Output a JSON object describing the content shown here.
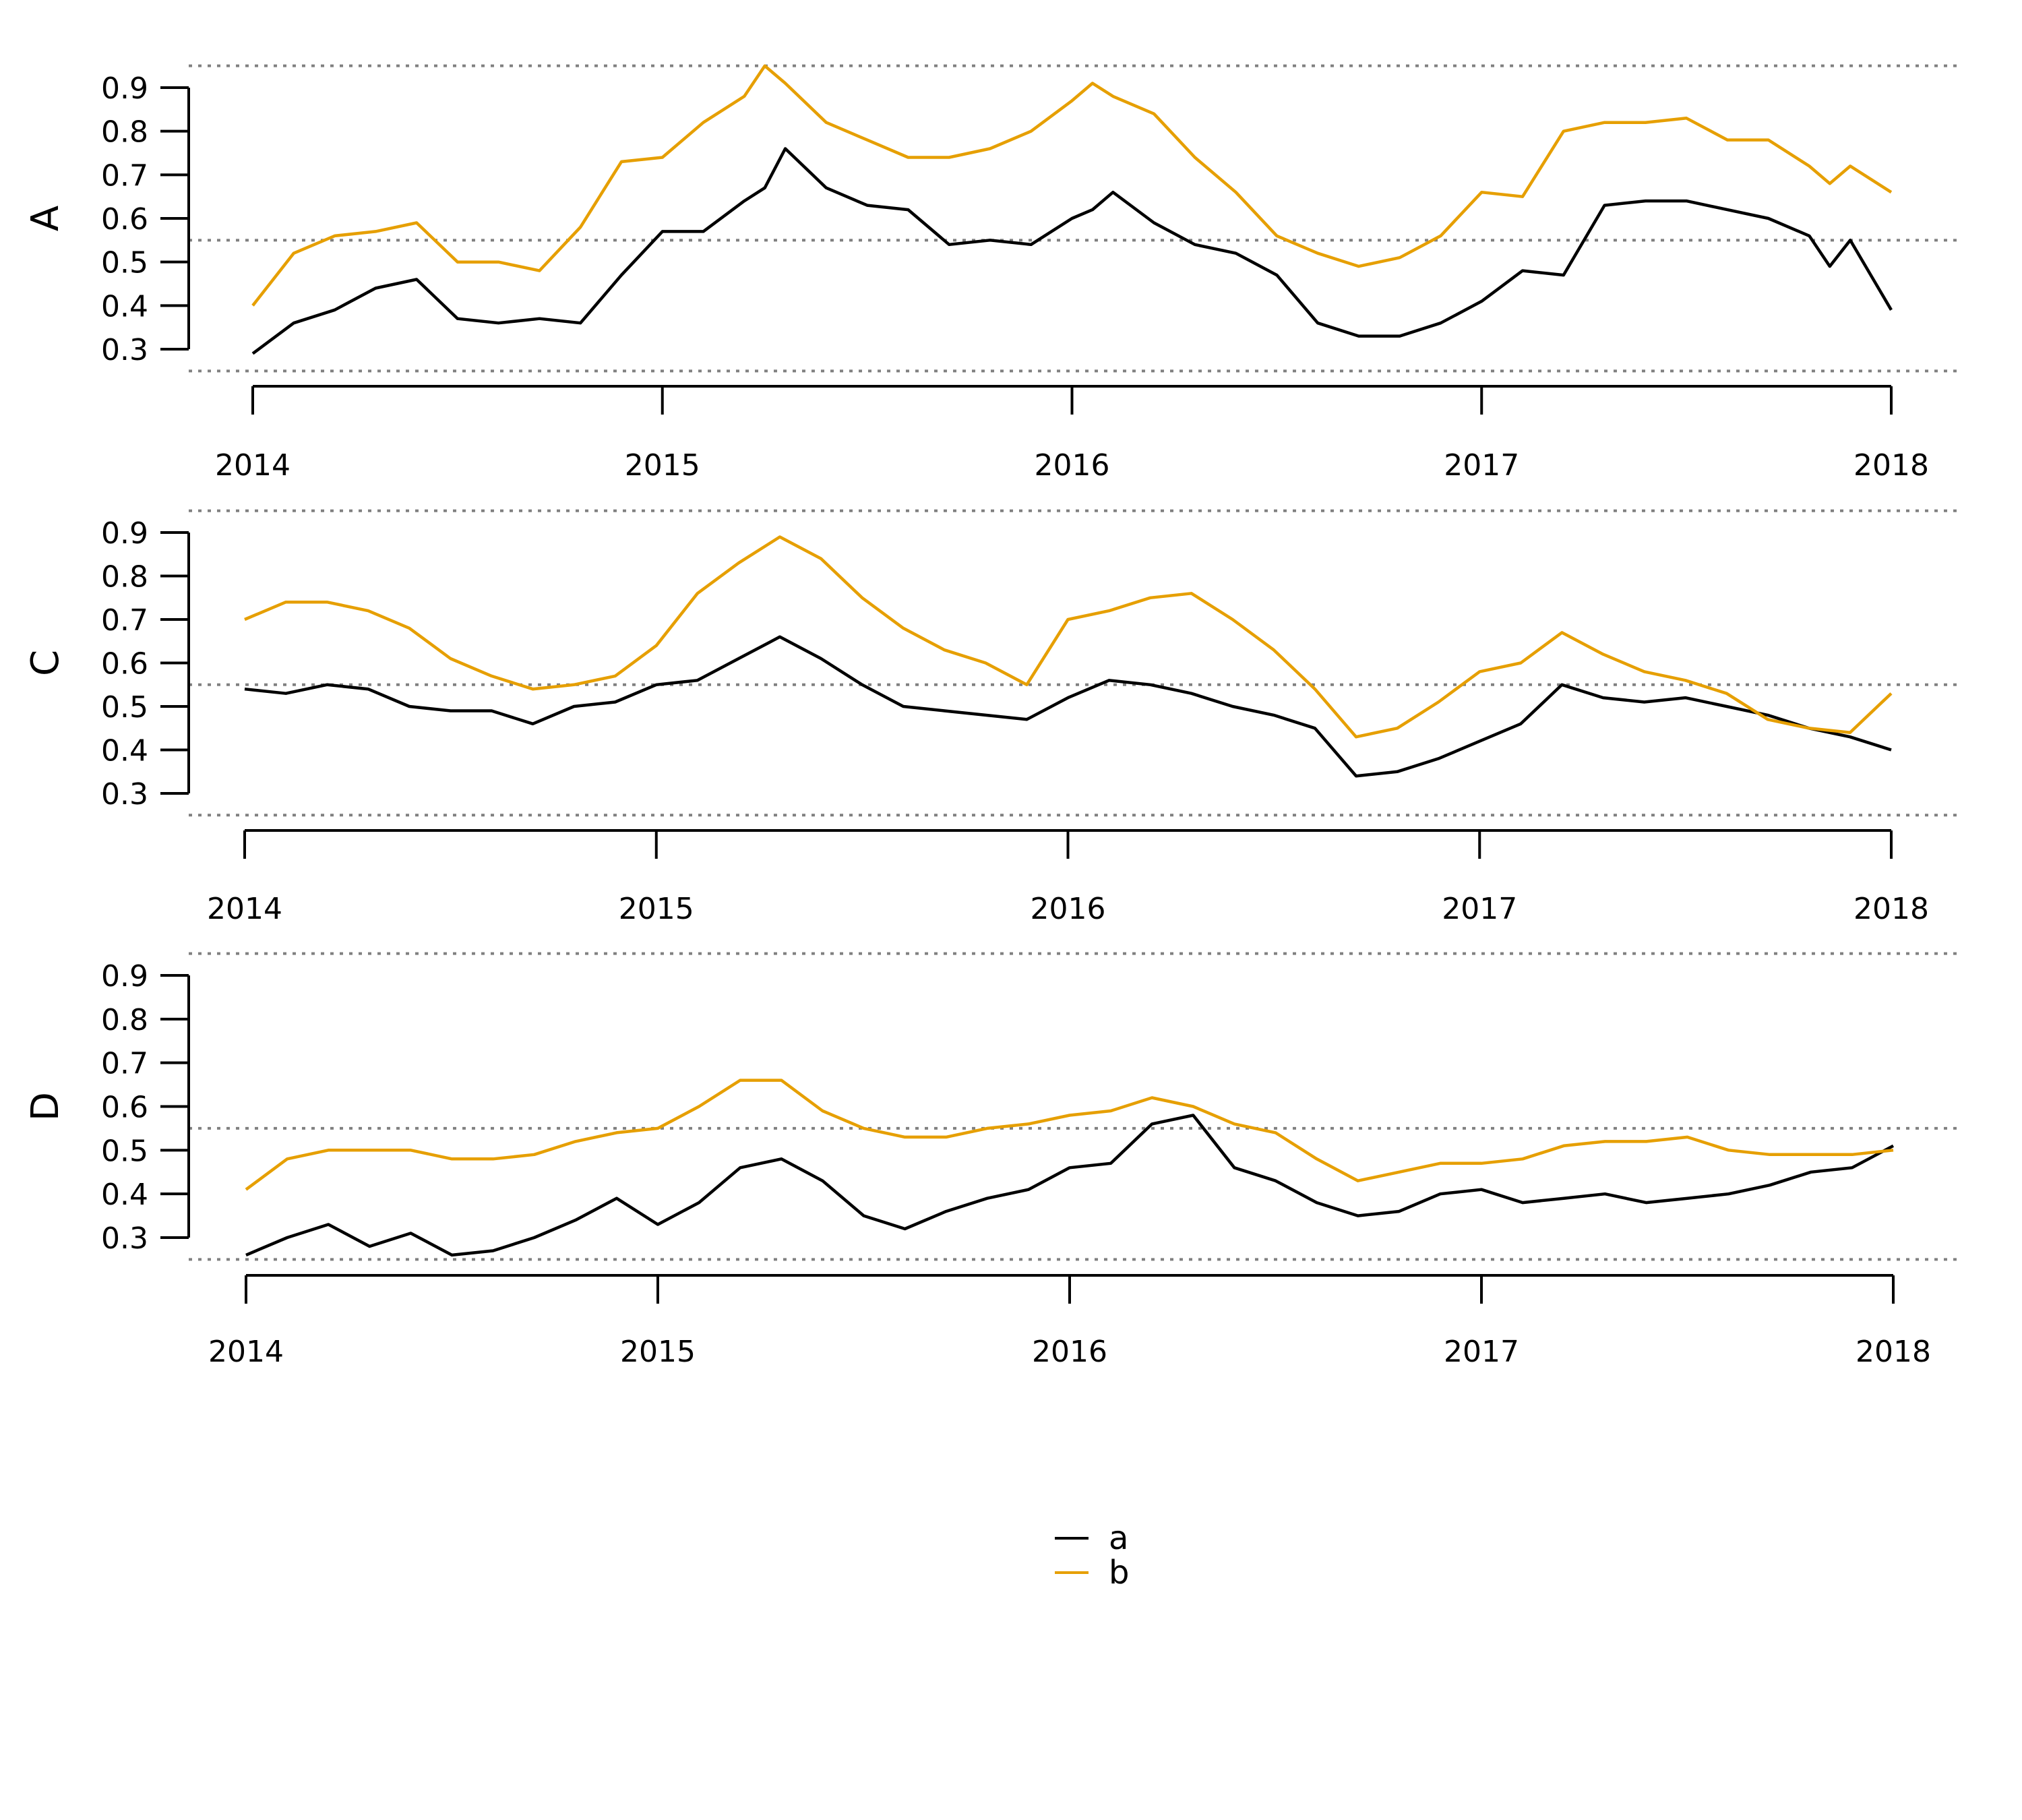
{
  "chart_data": [
    {
      "type": "line",
      "ylabel": "A",
      "ylim": [
        0.3,
        0.9
      ],
      "yticks": [
        "0.3",
        "0.4",
        "0.5",
        "0.6",
        "0.7",
        "0.8",
        "0.9"
      ],
      "xticks": [
        "2014",
        "2015",
        "2016",
        "2017",
        "2018"
      ],
      "reference_lines": [
        0.25,
        0.55,
        0.95
      ],
      "series": [
        {
          "name": "a",
          "color": "#000000",
          "x": [
            2014.0,
            2014.1,
            2014.2,
            2014.3,
            2014.4,
            2014.5,
            2014.6,
            2014.7,
            2014.8,
            2014.9,
            2015.0,
            2015.1,
            2015.2,
            2015.25,
            2015.3,
            2015.4,
            2015.5,
            2015.6,
            2015.7,
            2015.8,
            2015.9,
            2016.0,
            2016.05,
            2016.1,
            2016.2,
            2016.3,
            2016.4,
            2016.5,
            2016.6,
            2016.7,
            2016.8,
            2016.9,
            2017.0,
            2017.1,
            2017.2,
            2017.3,
            2017.4,
            2017.5,
            2017.6,
            2017.7,
            2017.8,
            2017.85,
            2017.9,
            2018.0
          ],
          "y": [
            0.29,
            0.36,
            0.39,
            0.44,
            0.46,
            0.37,
            0.36,
            0.37,
            0.36,
            0.47,
            0.57,
            0.57,
            0.64,
            0.67,
            0.76,
            0.67,
            0.63,
            0.62,
            0.54,
            0.55,
            0.54,
            0.6,
            0.62,
            0.66,
            0.59,
            0.54,
            0.52,
            0.47,
            0.36,
            0.33,
            0.33,
            0.36,
            0.41,
            0.48,
            0.47,
            0.63,
            0.64,
            0.64,
            0.62,
            0.6,
            0.56,
            0.49,
            0.55,
            0.39
          ]
        },
        {
          "name": "b",
          "color": "#E69F00",
          "x": [
            2014.0,
            2014.1,
            2014.2,
            2014.3,
            2014.4,
            2014.5,
            2014.6,
            2014.7,
            2014.8,
            2014.9,
            2015.0,
            2015.1,
            2015.2,
            2015.25,
            2015.3,
            2015.4,
            2015.5,
            2015.6,
            2015.7,
            2015.8,
            2015.9,
            2016.0,
            2016.05,
            2016.1,
            2016.2,
            2016.3,
            2016.4,
            2016.5,
            2016.6,
            2016.7,
            2016.8,
            2016.9,
            2017.0,
            2017.1,
            2017.2,
            2017.3,
            2017.4,
            2017.5,
            2017.6,
            2017.7,
            2017.8,
            2017.85,
            2017.9,
            2018.0
          ],
          "y": [
            0.4,
            0.52,
            0.56,
            0.57,
            0.59,
            0.5,
            0.5,
            0.48,
            0.58,
            0.73,
            0.74,
            0.82,
            0.88,
            0.95,
            0.91,
            0.82,
            0.78,
            0.74,
            0.74,
            0.76,
            0.8,
            0.87,
            0.91,
            0.88,
            0.84,
            0.74,
            0.66,
            0.56,
            0.52,
            0.49,
            0.51,
            0.56,
            0.66,
            0.65,
            0.8,
            0.82,
            0.82,
            0.83,
            0.78,
            0.78,
            0.72,
            0.68,
            0.72,
            0.66
          ]
        }
      ]
    },
    {
      "type": "line",
      "ylabel": "C",
      "ylim": [
        0.3,
        0.9
      ],
      "yticks": [
        "0.3",
        "0.4",
        "0.5",
        "0.6",
        "0.7",
        "0.8",
        "0.9"
      ],
      "xticks": [
        "2014",
        "2015",
        "2016",
        "2017",
        "2018"
      ],
      "reference_lines": [
        0.25,
        0.55,
        0.95
      ],
      "series": [
        {
          "name": "a",
          "color": "#000000",
          "x": [
            2014.0,
            2014.1,
            2014.2,
            2014.3,
            2014.4,
            2014.5,
            2014.6,
            2014.7,
            2014.8,
            2014.9,
            2015.0,
            2015.1,
            2015.2,
            2015.3,
            2015.4,
            2015.5,
            2015.6,
            2015.7,
            2015.8,
            2015.9,
            2016.0,
            2016.1,
            2016.2,
            2016.3,
            2016.4,
            2016.5,
            2016.6,
            2016.7,
            2016.8,
            2016.9,
            2017.0,
            2017.1,
            2017.2,
            2017.3,
            2017.4,
            2017.5,
            2017.6,
            2017.7,
            2017.8,
            2017.9,
            2018.0
          ],
          "y": [
            0.54,
            0.53,
            0.55,
            0.54,
            0.5,
            0.49,
            0.49,
            0.46,
            0.5,
            0.51,
            0.55,
            0.56,
            0.61,
            0.66,
            0.61,
            0.55,
            0.5,
            0.49,
            0.48,
            0.47,
            0.52,
            0.56,
            0.55,
            0.53,
            0.5,
            0.48,
            0.45,
            0.34,
            0.35,
            0.38,
            0.42,
            0.46,
            0.55,
            0.52,
            0.51,
            0.52,
            0.5,
            0.48,
            0.45,
            0.43,
            0.4
          ]
        },
        {
          "name": "b",
          "color": "#E69F00",
          "x": [
            2014.0,
            2014.1,
            2014.2,
            2014.3,
            2014.4,
            2014.5,
            2014.6,
            2014.7,
            2014.8,
            2014.9,
            2015.0,
            2015.1,
            2015.2,
            2015.3,
            2015.4,
            2015.5,
            2015.6,
            2015.7,
            2015.8,
            2015.9,
            2016.0,
            2016.1,
            2016.2,
            2016.3,
            2016.4,
            2016.5,
            2016.6,
            2016.7,
            2016.8,
            2016.9,
            2017.0,
            2017.1,
            2017.2,
            2017.3,
            2017.4,
            2017.5,
            2017.6,
            2017.7,
            2017.8,
            2017.9,
            2018.0
          ],
          "y": [
            0.7,
            0.74,
            0.74,
            0.72,
            0.68,
            0.61,
            0.57,
            0.54,
            0.55,
            0.57,
            0.64,
            0.76,
            0.83,
            0.89,
            0.84,
            0.75,
            0.68,
            0.63,
            0.6,
            0.55,
            0.7,
            0.72,
            0.75,
            0.76,
            0.7,
            0.63,
            0.54,
            0.43,
            0.45,
            0.51,
            0.58,
            0.6,
            0.67,
            0.62,
            0.58,
            0.56,
            0.53,
            0.47,
            0.45,
            0.44,
            0.53
          ]
        }
      ]
    },
    {
      "type": "line",
      "ylabel": "D",
      "ylim": [
        0.3,
        0.9
      ],
      "yticks": [
        "0.3",
        "0.4",
        "0.5",
        "0.6",
        "0.7",
        "0.8",
        "0.9"
      ],
      "xticks": [
        "2014",
        "2015",
        "2016",
        "2017",
        "2018"
      ],
      "reference_lines": [
        0.25,
        0.55,
        0.95
      ],
      "series": [
        {
          "name": "a",
          "color": "#000000",
          "x": [
            2014.0,
            2014.1,
            2014.2,
            2014.3,
            2014.4,
            2014.5,
            2014.6,
            2014.7,
            2014.8,
            2014.9,
            2015.0,
            2015.1,
            2015.2,
            2015.3,
            2015.4,
            2015.5,
            2015.6,
            2015.7,
            2015.8,
            2015.9,
            2016.0,
            2016.1,
            2016.2,
            2016.3,
            2016.4,
            2016.5,
            2016.6,
            2016.7,
            2016.8,
            2016.9,
            2017.0,
            2017.1,
            2017.2,
            2017.3,
            2017.4,
            2017.5,
            2017.6,
            2017.7,
            2017.8,
            2017.9,
            2018.0
          ],
          "y": [
            0.26,
            0.3,
            0.33,
            0.28,
            0.31,
            0.26,
            0.27,
            0.3,
            0.34,
            0.39,
            0.33,
            0.38,
            0.46,
            0.48,
            0.43,
            0.35,
            0.32,
            0.36,
            0.39,
            0.41,
            0.46,
            0.47,
            0.56,
            0.58,
            0.46,
            0.43,
            0.38,
            0.35,
            0.36,
            0.4,
            0.41,
            0.38,
            0.39,
            0.4,
            0.38,
            0.39,
            0.4,
            0.42,
            0.45,
            0.46,
            0.51
          ]
        },
        {
          "name": "b",
          "color": "#E69F00",
          "x": [
            2014.0,
            2014.1,
            2014.2,
            2014.3,
            2014.4,
            2014.5,
            2014.6,
            2014.7,
            2014.8,
            2014.9,
            2015.0,
            2015.1,
            2015.2,
            2015.3,
            2015.4,
            2015.5,
            2015.6,
            2015.7,
            2015.8,
            2015.9,
            2016.0,
            2016.1,
            2016.2,
            2016.3,
            2016.4,
            2016.5,
            2016.6,
            2016.7,
            2016.8,
            2016.9,
            2017.0,
            2017.1,
            2017.2,
            2017.3,
            2017.4,
            2017.5,
            2017.6,
            2017.7,
            2017.8,
            2017.9,
            2018.0
          ],
          "y": [
            0.41,
            0.48,
            0.5,
            0.5,
            0.5,
            0.48,
            0.48,
            0.49,
            0.52,
            0.54,
            0.55,
            0.6,
            0.66,
            0.66,
            0.59,
            0.55,
            0.53,
            0.53,
            0.55,
            0.56,
            0.58,
            0.59,
            0.62,
            0.6,
            0.56,
            0.54,
            0.48,
            0.43,
            0.45,
            0.47,
            0.47,
            0.48,
            0.51,
            0.52,
            0.52,
            0.53,
            0.5,
            0.49,
            0.49,
            0.49,
            0.5
          ]
        }
      ]
    }
  ],
  "legend": {
    "items": [
      {
        "label": "a",
        "color": "#000000"
      },
      {
        "label": "b",
        "color": "#E69F00"
      }
    ]
  },
  "reference_line_color": "#808080"
}
